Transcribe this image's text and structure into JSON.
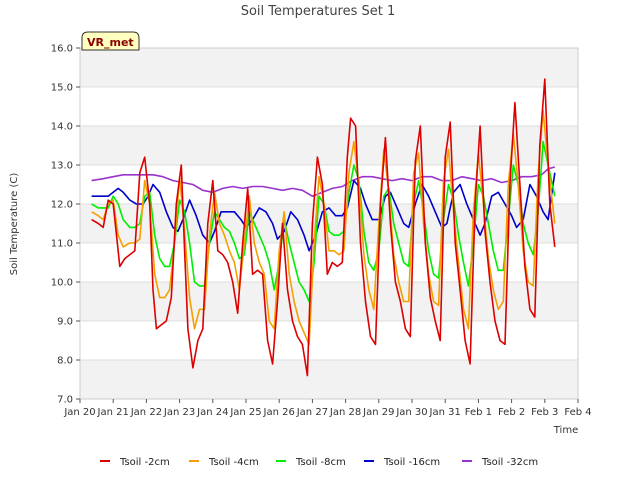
{
  "chart_data": {
    "type": "line",
    "title": "Soil Temperatures Set 1",
    "xlabel": "Time",
    "ylabel": "Soil Temperature (C)",
    "badge": "VR_met",
    "xlim": [
      0,
      15
    ],
    "ylim": [
      7.0,
      16.0
    ],
    "x_ticks": [
      0,
      1,
      2,
      3,
      4,
      5,
      6,
      7,
      8,
      9,
      10,
      11,
      12,
      13,
      14,
      15
    ],
    "x_tick_labels": [
      "Jan 20",
      "Jan 21",
      "Jan 22",
      "Jan 23",
      "Jan 24",
      "Jan 25",
      "Jan 26",
      "Jan 27",
      "Jan 28",
      "Jan 29",
      "Jan 30",
      "Jan 31",
      "Feb 1",
      "Feb 2",
      "Feb 3",
      "Feb 4"
    ],
    "y_ticks": [
      7.0,
      8.0,
      9.0,
      10.0,
      11.0,
      12.0,
      13.0,
      14.0,
      15.0,
      16.0
    ],
    "y_tick_labels": [
      "7.0",
      "8.0",
      "9.0",
      "10.0",
      "11.0",
      "12.0",
      "13.0",
      "14.0",
      "15.0",
      "16.0"
    ],
    "grid": true,
    "legend_position": "bottom",
    "x_units": "days since Jan 20",
    "series": [
      {
        "name": "Tsoil -2cm",
        "color": "#dd0000",
        "x": [
          0.35,
          0.55,
          0.7,
          0.85,
          1.0,
          1.1,
          1.2,
          1.35,
          1.5,
          1.65,
          1.8,
          1.95,
          2.1,
          2.2,
          2.3,
          2.45,
          2.6,
          2.75,
          2.9,
          3.05,
          3.15,
          3.25,
          3.4,
          3.55,
          3.7,
          3.85,
          4.0,
          4.15,
          4.3,
          4.45,
          4.6,
          4.75,
          4.9,
          5.05,
          5.2,
          5.35,
          5.5,
          5.65,
          5.8,
          5.95,
          6.1,
          6.25,
          6.4,
          6.55,
          6.7,
          6.85,
          7.0,
          7.15,
          7.3,
          7.45,
          7.6,
          7.75,
          7.9,
          8.05,
          8.15,
          8.3,
          8.45,
          8.6,
          8.75,
          8.9,
          9.05,
          9.2,
          9.35,
          9.5,
          9.65,
          9.8,
          9.95,
          10.1,
          10.25,
          10.4,
          10.55,
          10.7,
          10.85,
          11.0,
          11.15,
          11.3,
          11.45,
          11.6,
          11.75,
          11.9,
          12.05,
          12.2,
          12.35,
          12.5,
          12.65,
          12.8,
          12.95,
          13.1,
          13.25,
          13.4,
          13.55,
          13.7,
          13.85,
          14.0,
          14.15,
          14.3
        ],
        "values": [
          11.6,
          11.5,
          11.4,
          12.1,
          12.0,
          11.2,
          10.4,
          10.6,
          10.7,
          10.8,
          12.8,
          13.2,
          12.0,
          9.8,
          8.8,
          8.9,
          9.0,
          9.6,
          12.0,
          13.0,
          10.8,
          8.8,
          7.8,
          8.5,
          8.8,
          11.5,
          12.6,
          10.8,
          10.7,
          10.5,
          10.0,
          9.2,
          11.0,
          12.4,
          10.2,
          10.3,
          10.2,
          8.5,
          7.9,
          9.5,
          11.5,
          9.8,
          9.0,
          8.6,
          8.4,
          7.6,
          11.5,
          13.2,
          12.5,
          10.2,
          10.5,
          10.4,
          10.5,
          13.2,
          14.2,
          14.0,
          11.0,
          9.5,
          8.6,
          8.4,
          12.0,
          13.7,
          11.5,
          10.0,
          9.5,
          8.8,
          8.6,
          13.1,
          14.0,
          11.0,
          9.6,
          9.0,
          8.5,
          13.2,
          14.1,
          11.0,
          9.8,
          8.5,
          7.9,
          12.0,
          14.0,
          11.3,
          10.0,
          9.0,
          8.5,
          8.4,
          12.5,
          14.6,
          12.5,
          10.4,
          9.3,
          9.1,
          13.5,
          15.2,
          12.0,
          10.9
        ]
      },
      {
        "name": "Tsoil -4cm",
        "color": "#f5a000",
        "x": [
          0.35,
          0.55,
          0.7,
          0.85,
          1.0,
          1.15,
          1.3,
          1.5,
          1.65,
          1.8,
          1.95,
          2.1,
          2.25,
          2.4,
          2.55,
          2.7,
          2.85,
          3.0,
          3.15,
          3.3,
          3.45,
          3.6,
          3.75,
          3.9,
          4.05,
          4.2,
          4.35,
          4.5,
          4.65,
          4.8,
          4.95,
          5.1,
          5.25,
          5.4,
          5.55,
          5.7,
          5.85,
          6.0,
          6.15,
          6.3,
          6.45,
          6.6,
          6.75,
          6.9,
          7.05,
          7.2,
          7.35,
          7.5,
          7.65,
          7.8,
          7.95,
          8.1,
          8.25,
          8.4,
          8.55,
          8.7,
          8.85,
          9.0,
          9.15,
          9.3,
          9.45,
          9.6,
          9.75,
          9.9,
          10.05,
          10.2,
          10.35,
          10.5,
          10.65,
          10.8,
          10.95,
          11.1,
          11.25,
          11.4,
          11.55,
          11.7,
          11.85,
          12.0,
          12.15,
          12.3,
          12.45,
          12.6,
          12.75,
          12.9,
          13.05,
          13.2,
          13.35,
          13.5,
          13.65,
          13.8,
          13.95,
          14.1,
          14.3
        ],
        "values": [
          11.8,
          11.7,
          11.6,
          12.0,
          12.1,
          11.2,
          10.9,
          11.0,
          11.0,
          11.1,
          12.6,
          12.0,
          10.2,
          9.6,
          9.6,
          9.8,
          11.0,
          12.7,
          11.3,
          9.6,
          8.8,
          9.3,
          9.3,
          11.2,
          12.3,
          11.5,
          11.2,
          10.8,
          10.5,
          9.8,
          11.0,
          12.2,
          11.0,
          10.5,
          10.2,
          9.0,
          8.8,
          10.8,
          11.8,
          10.2,
          9.5,
          9.0,
          8.7,
          8.4,
          11.0,
          12.7,
          12.0,
          10.8,
          10.8,
          10.7,
          10.8,
          12.8,
          13.6,
          12.5,
          10.7,
          9.8,
          9.3,
          11.5,
          13.4,
          12.3,
          10.7,
          10.0,
          9.5,
          9.5,
          12.8,
          13.3,
          11.5,
          10.2,
          9.5,
          9.4,
          12.6,
          13.4,
          11.8,
          10.5,
          9.3,
          8.8,
          11.8,
          13.3,
          12.0,
          10.6,
          9.8,
          9.3,
          9.5,
          12.5,
          13.8,
          12.5,
          10.8,
          10.0,
          9.9,
          12.8,
          14.4,
          13.0,
          11.5
        ]
      },
      {
        "name": "Tsoil -8cm",
        "color": "#00ee00",
        "x": [
          0.35,
          0.55,
          0.7,
          0.85,
          1.0,
          1.15,
          1.3,
          1.5,
          1.65,
          1.8,
          1.95,
          2.1,
          2.25,
          2.4,
          2.55,
          2.7,
          2.85,
          3.0,
          3.15,
          3.3,
          3.45,
          3.6,
          3.75,
          3.9,
          4.05,
          4.2,
          4.35,
          4.5,
          4.65,
          4.8,
          4.95,
          5.1,
          5.25,
          5.4,
          5.55,
          5.7,
          5.85,
          6.0,
          6.15,
          6.3,
          6.45,
          6.6,
          6.75,
          6.9,
          7.05,
          7.2,
          7.35,
          7.5,
          7.65,
          7.8,
          7.95,
          8.1,
          8.25,
          8.4,
          8.55,
          8.7,
          8.85,
          9.0,
          9.15,
          9.3,
          9.45,
          9.6,
          9.75,
          9.9,
          10.05,
          10.2,
          10.35,
          10.5,
          10.65,
          10.8,
          10.95,
          11.1,
          11.25,
          11.4,
          11.55,
          11.7,
          11.85,
          12.0,
          12.15,
          12.3,
          12.45,
          12.6,
          12.75,
          12.9,
          13.05,
          13.2,
          13.35,
          13.5,
          13.65,
          13.8,
          13.95,
          14.1,
          14.3
        ],
        "values": [
          12.0,
          11.9,
          11.9,
          11.9,
          12.2,
          12.0,
          11.6,
          11.4,
          11.4,
          11.5,
          12.2,
          12.3,
          11.2,
          10.6,
          10.4,
          10.4,
          11.0,
          12.1,
          11.8,
          11.0,
          10.0,
          9.9,
          9.9,
          11.0,
          11.8,
          11.6,
          11.4,
          11.3,
          11.0,
          10.6,
          10.7,
          11.8,
          11.5,
          11.2,
          10.9,
          10.5,
          9.8,
          10.5,
          11.6,
          11.0,
          10.5,
          10.0,
          9.8,
          9.5,
          10.5,
          12.2,
          12.0,
          11.3,
          11.2,
          11.2,
          11.3,
          12.3,
          13.0,
          12.6,
          11.3,
          10.5,
          10.3,
          10.8,
          12.2,
          12.4,
          11.5,
          11.0,
          10.5,
          10.4,
          12.0,
          12.6,
          11.8,
          10.8,
          10.2,
          10.1,
          11.6,
          12.5,
          12.1,
          11.2,
          10.5,
          9.9,
          11.0,
          12.5,
          12.2,
          11.5,
          10.8,
          10.3,
          10.3,
          11.6,
          13.0,
          12.5,
          11.5,
          11.0,
          10.7,
          11.8,
          13.6,
          13.0,
          12.2
        ]
      },
      {
        "name": "Tsoil -16cm",
        "color": "#0000cc",
        "x": [
          0.35,
          0.6,
          0.85,
          1.0,
          1.15,
          1.3,
          1.5,
          1.7,
          1.9,
          2.05,
          2.2,
          2.4,
          2.6,
          2.8,
          2.95,
          3.1,
          3.3,
          3.5,
          3.7,
          3.9,
          4.05,
          4.25,
          4.45,
          4.65,
          4.85,
          5.0,
          5.2,
          5.4,
          5.6,
          5.8,
          5.95,
          6.15,
          6.35,
          6.55,
          6.75,
          6.9,
          7.1,
          7.3,
          7.5,
          7.7,
          7.9,
          8.05,
          8.25,
          8.45,
          8.6,
          8.8,
          9.0,
          9.2,
          9.35,
          9.55,
          9.75,
          9.9,
          10.1,
          10.3,
          10.5,
          10.7,
          10.9,
          11.05,
          11.25,
          11.45,
          11.65,
          11.85,
          12.05,
          12.2,
          12.4,
          12.6,
          12.8,
          13.0,
          13.15,
          13.35,
          13.55,
          13.75,
          13.95,
          14.1,
          14.3
        ],
        "values": [
          12.2,
          12.2,
          12.2,
          12.3,
          12.4,
          12.3,
          12.1,
          12.0,
          12.0,
          12.2,
          12.5,
          12.3,
          11.8,
          11.4,
          11.3,
          11.6,
          12.1,
          11.7,
          11.2,
          11.0,
          11.3,
          11.8,
          11.8,
          11.8,
          11.6,
          11.4,
          11.6,
          11.9,
          11.8,
          11.5,
          11.1,
          11.3,
          11.8,
          11.6,
          11.2,
          10.8,
          11.2,
          11.8,
          11.9,
          11.7,
          11.7,
          11.9,
          12.6,
          12.4,
          12.0,
          11.6,
          11.6,
          12.2,
          12.3,
          11.9,
          11.5,
          11.4,
          12.0,
          12.5,
          12.2,
          11.8,
          11.4,
          11.5,
          12.3,
          12.5,
          12.0,
          11.6,
          11.2,
          11.5,
          12.2,
          12.3,
          12.0,
          11.7,
          11.4,
          11.6,
          12.5,
          12.2,
          11.8,
          11.6,
          12.8
        ]
      },
      {
        "name": "Tsoil -32cm",
        "color": "#9933cc",
        "x": [
          0.35,
          0.7,
          1.0,
          1.3,
          1.6,
          1.9,
          2.2,
          2.5,
          2.8,
          3.1,
          3.4,
          3.7,
          4.0,
          4.3,
          4.6,
          4.9,
          5.2,
          5.5,
          5.8,
          6.1,
          6.4,
          6.7,
          7.0,
          7.3,
          7.6,
          7.9,
          8.2,
          8.5,
          8.8,
          9.1,
          9.4,
          9.7,
          10.0,
          10.3,
          10.6,
          10.9,
          11.2,
          11.5,
          11.8,
          12.1,
          12.4,
          12.7,
          13.0,
          13.3,
          13.6,
          13.9,
          14.1,
          14.3
        ],
        "values": [
          12.6,
          12.65,
          12.7,
          12.75,
          12.75,
          12.75,
          12.75,
          12.7,
          12.6,
          12.55,
          12.5,
          12.35,
          12.3,
          12.4,
          12.45,
          12.4,
          12.45,
          12.45,
          12.4,
          12.35,
          12.4,
          12.35,
          12.2,
          12.3,
          12.4,
          12.45,
          12.6,
          12.7,
          12.7,
          12.65,
          12.6,
          12.65,
          12.6,
          12.7,
          12.7,
          12.6,
          12.6,
          12.7,
          12.65,
          12.6,
          12.65,
          12.55,
          12.6,
          12.7,
          12.7,
          12.75,
          12.9,
          12.95
        ]
      }
    ]
  }
}
